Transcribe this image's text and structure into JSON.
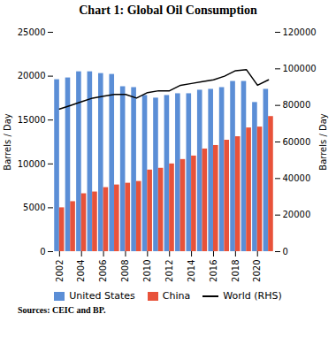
{
  "chart_data": {
    "type": "bar",
    "title": "Chart 1: Global Oil Consumption",
    "source": "Sources: CEIC and BP.",
    "categories": [
      2002,
      null,
      2004,
      null,
      2006,
      null,
      2008,
      null,
      2010,
      null,
      2012,
      null,
      2014,
      null,
      2016,
      null,
      2018,
      null,
      2020,
      null
    ],
    "series": [
      {
        "name": "United States",
        "type": "bar",
        "color": "#5b8ed6",
        "values": [
          19600,
          19800,
          20500,
          20500,
          20300,
          20200,
          18800,
          18700,
          17800,
          17500,
          17800,
          18000,
          18000,
          18400,
          18500,
          18700,
          19400,
          19400,
          17000,
          18500
        ]
      },
      {
        "name": "China",
        "type": "bar",
        "color": "#e8523a",
        "values": [
          5000,
          5700,
          6600,
          6800,
          7300,
          7600,
          7800,
          8000,
          9300,
          9500,
          10000,
          10500,
          10900,
          11700,
          12100,
          12700,
          13100,
          14100,
          14200,
          15400
        ]
      },
      {
        "name": "World (RHS)",
        "type": "line",
        "axis": "y2",
        "color": "#000000",
        "values": [
          78000,
          80000,
          82000,
          84000,
          85000,
          86000,
          86000,
          84000,
          87000,
          88000,
          88000,
          91000,
          92000,
          93000,
          94000,
          96000,
          99000,
          99500,
          91000,
          94000
        ]
      }
    ],
    "ylabel": "Barrels / Day",
    "y2label": "Barrels / Day",
    "ylim": [
      0,
      25000
    ],
    "yticks": [
      0,
      5000,
      10000,
      15000,
      20000,
      25000
    ],
    "y2lim": [
      0,
      120000
    ],
    "y2ticks": [
      0,
      20000,
      40000,
      60000,
      80000,
      100000,
      120000
    ],
    "grid": false,
    "legend": "bottom"
  }
}
